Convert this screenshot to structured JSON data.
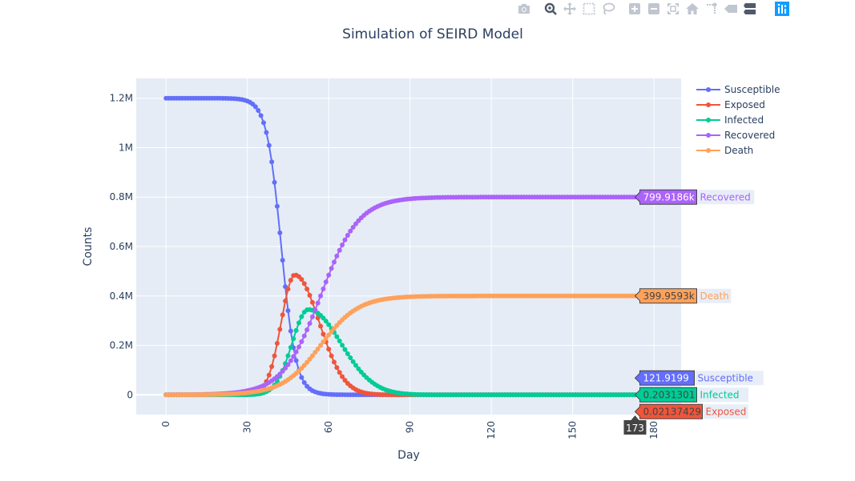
{
  "modebar": {
    "buttons": [
      {
        "name": "camera-icon",
        "x": 0
      },
      {
        "name": "zoom-icon",
        "x": 33
      },
      {
        "name": "pan-icon",
        "x": 57
      },
      {
        "name": "box-select-icon",
        "x": 81
      },
      {
        "name": "lasso-icon",
        "x": 105
      },
      {
        "name": "zoom-in-icon",
        "x": 138
      },
      {
        "name": "zoom-out-icon",
        "x": 162
      },
      {
        "name": "autoscale-icon",
        "x": 186
      },
      {
        "name": "home-icon",
        "x": 210
      },
      {
        "name": "spike-lines-icon",
        "x": 234
      },
      {
        "name": "hover-closest-icon",
        "x": 258
      },
      {
        "name": "hover-compare-icon",
        "x": 282
      },
      {
        "name": "plotly-logo-icon",
        "x": 322
      }
    ]
  },
  "colors": {
    "plot_bg": "#e5ecf6",
    "grid": "#ffffff",
    "text": "#2a3f5f",
    "susceptible": "#636efa",
    "exposed": "#ef553b",
    "infected": "#00cc96",
    "recovered": "#ab63fa",
    "death": "#ffa15a"
  },
  "chart_data": {
    "type": "line",
    "title": "Simulation of SEIRD Model",
    "xlabel": "Day",
    "ylabel": "Counts",
    "xlim": [
      -11,
      190
    ],
    "ylim": [
      -80000,
      1280000
    ],
    "x_ticks": [
      "0",
      "30",
      "60",
      "90",
      "120",
      "150",
      "180"
    ],
    "x_tick_values": [
      0,
      30,
      60,
      90,
      120,
      150,
      180
    ],
    "y_ticks": [
      "0",
      "0.2M",
      "0.4M",
      "0.6M",
      "0.8M",
      "1M",
      "1.2M"
    ],
    "y_tick_values": [
      0,
      200000,
      400000,
      600000,
      800000,
      1000000,
      1200000
    ],
    "grid": true,
    "legend_position": "top-right",
    "x_range": [
      0,
      173
    ],
    "series": [
      {
        "name": "Susceptible",
        "color": "#636efa",
        "kind": "susceptible",
        "params": {
          "start": 1200000,
          "end": 121.9199,
          "midpoint": 42.5,
          "width": 2.7
        }
      },
      {
        "name": "Exposed",
        "color": "#ef553b",
        "kind": "gaussian",
        "params": {
          "peak": 485000,
          "center": 47.5,
          "sigma_left": 5.0,
          "sigma_right": 9.0
        }
      },
      {
        "name": "Infected",
        "color": "#00cc96",
        "kind": "gaussian",
        "params": {
          "peak": 345000,
          "center": 52.5,
          "sigma_left": 6.0,
          "sigma_right": 12.0
        }
      },
      {
        "name": "Recovered",
        "color": "#ab63fa",
        "kind": "logistic",
        "params": {
          "max": 799918.6,
          "midpoint": 57,
          "width": 7.0
        }
      },
      {
        "name": "Death",
        "color": "#ffa15a",
        "kind": "logistic",
        "params": {
          "max": 399959.3,
          "midpoint": 57,
          "width": 7.0
        }
      }
    ],
    "hover": {
      "x_label": "173",
      "items": [
        {
          "value": "799.9186k",
          "name": "Recovered",
          "color": "#ab63fa",
          "text_color": "#ffffff",
          "y": 799918.6
        },
        {
          "value": "399.9593k",
          "name": "Death",
          "color": "#ffa15a",
          "text_color": "#444444",
          "y": 399959.3
        },
        {
          "value": "121.9199",
          "name": "Susceptible",
          "color": "#636efa",
          "text_color": "#ffffff",
          "y": 121.9199
        },
        {
          "value": "0.2031301",
          "name": "Infected",
          "color": "#00cc96",
          "text_color": "#444444",
          "y": 0.2031301
        },
        {
          "value": "0.02137429",
          "name": "Exposed",
          "color": "#ef553b",
          "text_color": "#444444",
          "y": 0.02137429
        }
      ]
    }
  }
}
